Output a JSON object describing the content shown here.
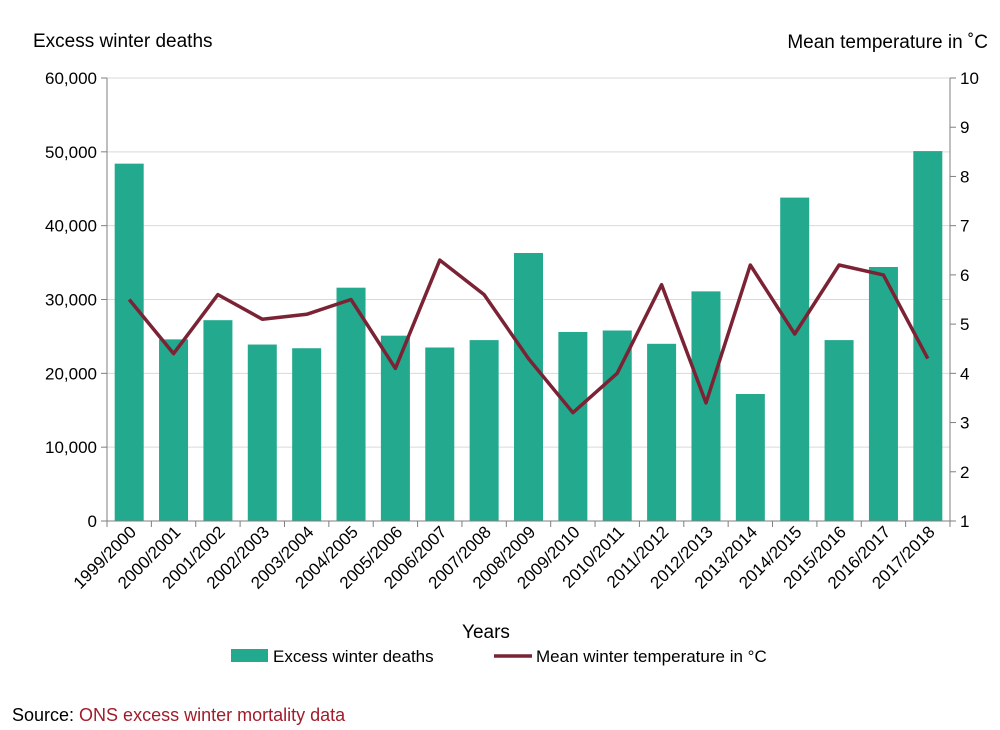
{
  "chart_data": {
    "type": "bar",
    "categories": [
      "1999/2000",
      "2000/2001",
      "2001/2002",
      "2002/2003",
      "2003/2004",
      "2004/2005",
      "2005/2006",
      "2006/2007",
      "2007/2008",
      "2008/2009",
      "2009/2010",
      "2010/2011",
      "2011/2012",
      "2012/2013",
      "2013/2014",
      "2014/2015",
      "2015/2016",
      "2016/2017",
      "2017/2018"
    ],
    "series": [
      {
        "name": "Excess winter deaths",
        "type": "bar",
        "axis": "left",
        "color": "#23a98d",
        "values": [
          48400,
          24600,
          27200,
          23900,
          23400,
          31600,
          25100,
          23500,
          24500,
          36300,
          25600,
          25800,
          24000,
          31100,
          17200,
          43800,
          24500,
          34400,
          50100
        ]
      },
      {
        "name": "Mean winter temperature in °C",
        "type": "line",
        "axis": "right",
        "color": "#7b2335",
        "values": [
          5.5,
          4.4,
          5.6,
          5.1,
          5.2,
          5.5,
          4.1,
          6.3,
          5.6,
          4.3,
          3.2,
          4.0,
          5.8,
          3.4,
          6.2,
          4.8,
          6.2,
          6.0,
          4.3
        ]
      }
    ],
    "left_axis": {
      "title": "Excess winter deaths",
      "ylim": [
        0,
        60000
      ],
      "ticks": [
        "0",
        "10,000",
        "20,000",
        "30,000",
        "40,000",
        "50,000",
        "60,000"
      ]
    },
    "right_axis": {
      "title": "Mean temperature  in ˚C",
      "ylim": [
        1,
        10
      ],
      "ticks": [
        "1",
        "2",
        "3",
        "4",
        "5",
        "6",
        "7",
        "8",
        "9",
        "10"
      ]
    },
    "xlabel": "Years",
    "grid": true,
    "legend_position": "bottom"
  },
  "source": {
    "prefix": "Source: ",
    "link_text": "ONS excess winter mortality data",
    "link_color": "#a11c2b"
  }
}
